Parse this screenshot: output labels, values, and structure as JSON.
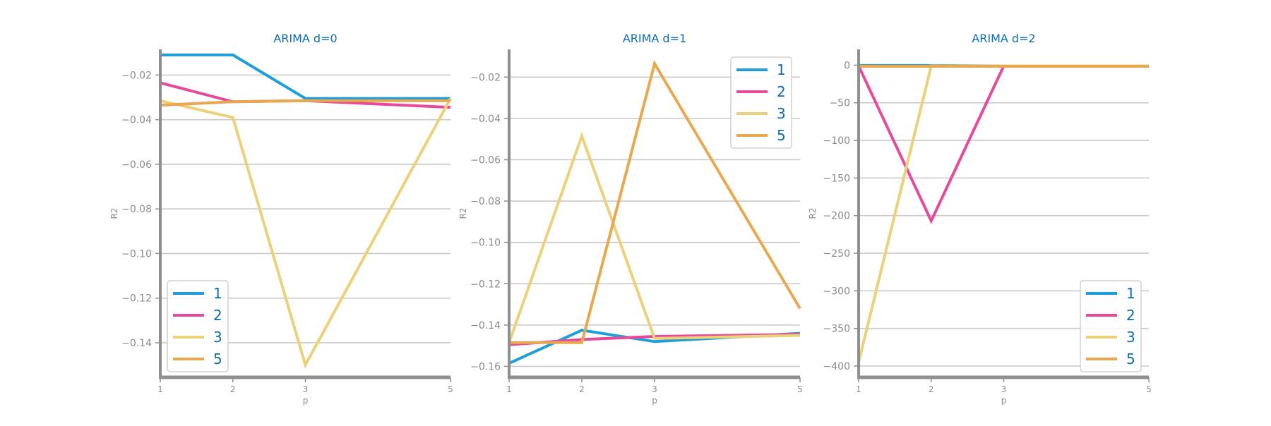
{
  "colors": {
    "1": "#1f9fd8",
    "2": "#e64a98",
    "3": "#ebd27a",
    "5": "#e8a850",
    "title": "#0b6cb0",
    "axis": "#8f8f8f",
    "grid": "#c8c8c8",
    "tick_text": "#8a8a8a"
  },
  "chart_data": [
    {
      "type": "line",
      "title": "ARIMA d=0",
      "xlabel": "p",
      "ylabel": "R2",
      "x": [
        1,
        2,
        3,
        5
      ],
      "xticks": [
        "1",
        "2",
        "3",
        "5"
      ],
      "xlim": [
        1,
        5
      ],
      "ylim": [
        -0.1555,
        -0.0085
      ],
      "yticks": [
        -0.14,
        -0.12,
        -0.1,
        -0.08,
        -0.06,
        -0.04,
        -0.02
      ],
      "ytick_labels": [
        "−0.14",
        "−0.12",
        "−0.10",
        "−0.08",
        "−0.06",
        "−0.04",
        "−0.02"
      ],
      "grid": "horizontal",
      "legend": "lower-left",
      "series": [
        {
          "name": "1",
          "values": [
            -0.011,
            -0.011,
            -0.0305,
            -0.0305
          ]
        },
        {
          "name": "2",
          "values": [
            -0.0235,
            -0.032,
            -0.0315,
            -0.0345
          ]
        },
        {
          "name": "3",
          "values": [
            -0.0315,
            -0.039,
            -0.15,
            -0.0305
          ]
        },
        {
          "name": "5",
          "values": [
            -0.0335,
            -0.032,
            -0.0315,
            -0.0315
          ]
        }
      ]
    },
    {
      "type": "line",
      "title": "ARIMA d=1",
      "xlabel": "p",
      "ylabel": "R2",
      "x": [
        1,
        2,
        3,
        5
      ],
      "xticks": [
        "1",
        "2",
        "3",
        "5"
      ],
      "xlim": [
        1,
        5
      ],
      "ylim": [
        -0.1653,
        -0.0066
      ],
      "yticks": [
        -0.16,
        -0.14,
        -0.12,
        -0.1,
        -0.08,
        -0.06,
        -0.04,
        -0.02
      ],
      "ytick_labels": [
        "−0.16",
        "−0.14",
        "−0.12",
        "−0.10",
        "−0.08",
        "−0.06",
        "−0.04",
        "−0.02"
      ],
      "grid": "horizontal",
      "legend": "upper-right",
      "series": [
        {
          "name": "1",
          "values": [
            -0.1585,
            -0.1425,
            -0.148,
            -0.144
          ]
        },
        {
          "name": "2",
          "values": [
            -0.1495,
            -0.147,
            -0.1455,
            -0.1445
          ]
        },
        {
          "name": "3",
          "values": [
            -0.1485,
            -0.0485,
            -0.1465,
            -0.145
          ]
        },
        {
          "name": "5",
          "values": [
            -0.1485,
            -0.1485,
            -0.0135,
            -0.132
          ]
        }
      ]
    },
    {
      "type": "line",
      "title": "ARIMA d=2",
      "xlabel": "p",
      "ylabel": "R2",
      "x": [
        1,
        2,
        3,
        5
      ],
      "xticks": [
        "1",
        "2",
        "3",
        "5"
      ],
      "xlim": [
        1,
        5
      ],
      "ylim": [
        -415,
        21
      ],
      "yticks": [
        -400,
        -350,
        -300,
        -250,
        -200,
        -150,
        -100,
        -50,
        0
      ],
      "ytick_labels": [
        "−400",
        "−350",
        "−300",
        "−250",
        "−200",
        "−150",
        "−100",
        "−50",
        "0"
      ],
      "grid": "horizontal",
      "legend": "lower-right",
      "series": [
        {
          "name": "1",
          "values": [
            -0.5,
            -0.5,
            -1,
            -1
          ]
        },
        {
          "name": "2",
          "values": [
            -1,
            -207,
            -1,
            -1
          ]
        },
        {
          "name": "3",
          "values": [
            -395,
            -1,
            -1,
            -1
          ]
        },
        {
          "name": "5",
          "values": [
            -1.5,
            -1.5,
            -1.5,
            -1.5
          ]
        }
      ]
    }
  ]
}
